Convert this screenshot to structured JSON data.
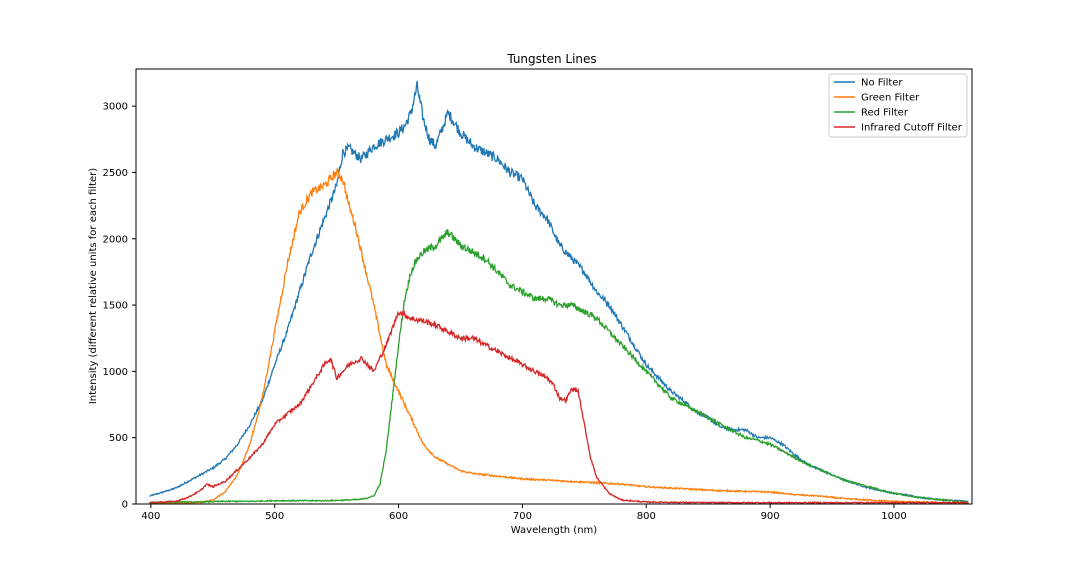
{
  "chart_data": {
    "type": "line",
    "title": "Tungsten Lines",
    "xlabel": "Wavelength (nm)",
    "ylabel": "Intensity (different relative units for each filter)",
    "xlim": [
      388,
      1063
    ],
    "ylim": [
      0,
      3280
    ],
    "xticks": [
      400,
      500,
      600,
      700,
      800,
      900,
      1000
    ],
    "yticks": [
      0,
      500,
      1000,
      1500,
      2000,
      2500,
      3000
    ],
    "grid": false,
    "legend_position": "top-right",
    "series": [
      {
        "name": "No Filter",
        "color": "#1f77b4",
        "x": [
          399,
          410,
          420,
          430,
          440,
          450,
          460,
          470,
          480,
          490,
          500,
          510,
          520,
          530,
          540,
          550,
          555,
          560,
          570,
          580,
          590,
          600,
          605,
          610,
          615,
          620,
          625,
          630,
          640,
          650,
          660,
          670,
          680,
          690,
          700,
          710,
          720,
          730,
          740,
          750,
          760,
          770,
          780,
          790,
          800,
          810,
          820,
          830,
          840,
          850,
          860,
          870,
          880,
          890,
          900,
          910,
          920,
          930,
          940,
          950,
          960,
          970,
          980,
          990,
          1000,
          1010,
          1020,
          1030,
          1040,
          1050,
          1060
        ],
        "y": [
          60,
          90,
          120,
          170,
          220,
          270,
          340,
          450,
          600,
          780,
          1050,
          1300,
          1600,
          1900,
          2150,
          2400,
          2650,
          2680,
          2600,
          2700,
          2750,
          2800,
          2850,
          2950,
          3150,
          2900,
          2750,
          2700,
          2950,
          2800,
          2700,
          2650,
          2600,
          2500,
          2450,
          2250,
          2150,
          1950,
          1850,
          1750,
          1600,
          1500,
          1350,
          1200,
          1050,
          950,
          850,
          780,
          700,
          650,
          580,
          560,
          560,
          500,
          500,
          450,
          370,
          300,
          260,
          220,
          180,
          150,
          120,
          100,
          80,
          70,
          50,
          40,
          30,
          25,
          20
        ]
      },
      {
        "name": "Green Filter",
        "color": "#ff7f0e",
        "x": [
          399,
          420,
          440,
          450,
          460,
          470,
          480,
          490,
          500,
          510,
          520,
          530,
          540,
          550,
          555,
          560,
          565,
          570,
          580,
          590,
          600,
          610,
          620,
          630,
          640,
          650,
          660,
          670,
          680,
          690,
          700,
          720,
          740,
          760,
          780,
          800,
          820,
          840,
          860,
          880,
          900,
          920,
          940,
          960,
          980,
          1000,
          1020,
          1040,
          1060
        ],
        "y": [
          5,
          5,
          10,
          30,
          90,
          220,
          450,
          800,
          1300,
          1800,
          2200,
          2350,
          2400,
          2500,
          2450,
          2250,
          2100,
          1900,
          1500,
          1050,
          850,
          650,
          450,
          350,
          300,
          250,
          230,
          220,
          210,
          200,
          190,
          180,
          170,
          160,
          150,
          130,
          120,
          110,
          100,
          95,
          90,
          70,
          60,
          40,
          30,
          20,
          15,
          10,
          5
        ]
      },
      {
        "name": "Red Filter",
        "color": "#2ca02c",
        "x": [
          399,
          420,
          440,
          460,
          480,
          500,
          520,
          540,
          560,
          570,
          580,
          585,
          590,
          595,
          600,
          605,
          610,
          615,
          620,
          630,
          640,
          650,
          660,
          670,
          680,
          690,
          700,
          710,
          720,
          730,
          740,
          750,
          760,
          770,
          780,
          790,
          800,
          810,
          820,
          830,
          840,
          850,
          860,
          870,
          880,
          890,
          900,
          910,
          920,
          930,
          940,
          950,
          960,
          980,
          1000,
          1020,
          1040,
          1060
        ],
        "y": [
          10,
          15,
          15,
          20,
          20,
          25,
          25,
          25,
          30,
          35,
          60,
          150,
          400,
          800,
          1200,
          1550,
          1750,
          1850,
          1900,
          1950,
          2050,
          1950,
          1900,
          1850,
          1750,
          1650,
          1600,
          1550,
          1550,
          1500,
          1500,
          1450,
          1400,
          1300,
          1200,
          1100,
          1000,
          900,
          800,
          750,
          700,
          650,
          600,
          550,
          500,
          480,
          450,
          400,
          350,
          300,
          260,
          220,
          180,
          130,
          80,
          50,
          30,
          15
        ]
      },
      {
        "name": "Infrared Cutoff Filter",
        "color": "#d62728",
        "x": [
          399,
          420,
          430,
          440,
          445,
          450,
          460,
          470,
          480,
          490,
          500,
          510,
          520,
          530,
          540,
          545,
          550,
          560,
          570,
          575,
          580,
          590,
          600,
          610,
          620,
          630,
          640,
          650,
          660,
          670,
          680,
          690,
          700,
          710,
          720,
          725,
          730,
          735,
          740,
          745,
          750,
          755,
          760,
          770,
          780,
          800,
          850,
          900,
          950,
          1000,
          1060
        ],
        "y": [
          10,
          20,
          50,
          100,
          150,
          130,
          170,
          260,
          350,
          450,
          600,
          680,
          750,
          900,
          1050,
          1100,
          950,
          1050,
          1100,
          1050,
          1000,
          1200,
          1450,
          1400,
          1380,
          1350,
          1300,
          1250,
          1250,
          1200,
          1150,
          1100,
          1050,
          1000,
          950,
          900,
          800,
          780,
          870,
          850,
          600,
          350,
          200,
          80,
          30,
          15,
          10,
          10,
          10,
          10,
          10
        ]
      }
    ]
  }
}
